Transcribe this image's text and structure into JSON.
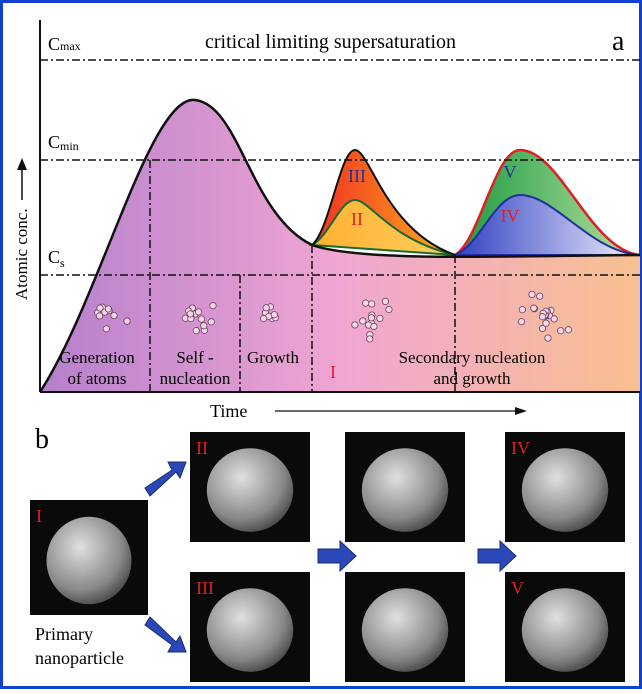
{
  "panel_a": {
    "label": "a",
    "title": "critical limiting supersaturation",
    "y_axis_label": "Atomic conc.",
    "x_axis_label": "Time",
    "levels": [
      {
        "symbol": "C",
        "subscript": "max"
      },
      {
        "symbol": "C",
        "subscript": "min"
      },
      {
        "symbol": "C",
        "subscript": "s"
      }
    ],
    "stages": [
      [
        "Generation",
        "of atoms"
      ],
      [
        "Self -",
        "nucleation"
      ],
      [
        "Growth"
      ],
      [
        "I"
      ],
      [
        "Secondary nucleation",
        "and growth"
      ]
    ],
    "regions": [
      "III",
      "II",
      "V",
      "IV"
    ]
  },
  "panel_b": {
    "label": "b",
    "images": [
      "I",
      "II",
      "III",
      "IV",
      "V"
    ],
    "caption": [
      "Primary",
      "nanoparticle"
    ]
  }
}
